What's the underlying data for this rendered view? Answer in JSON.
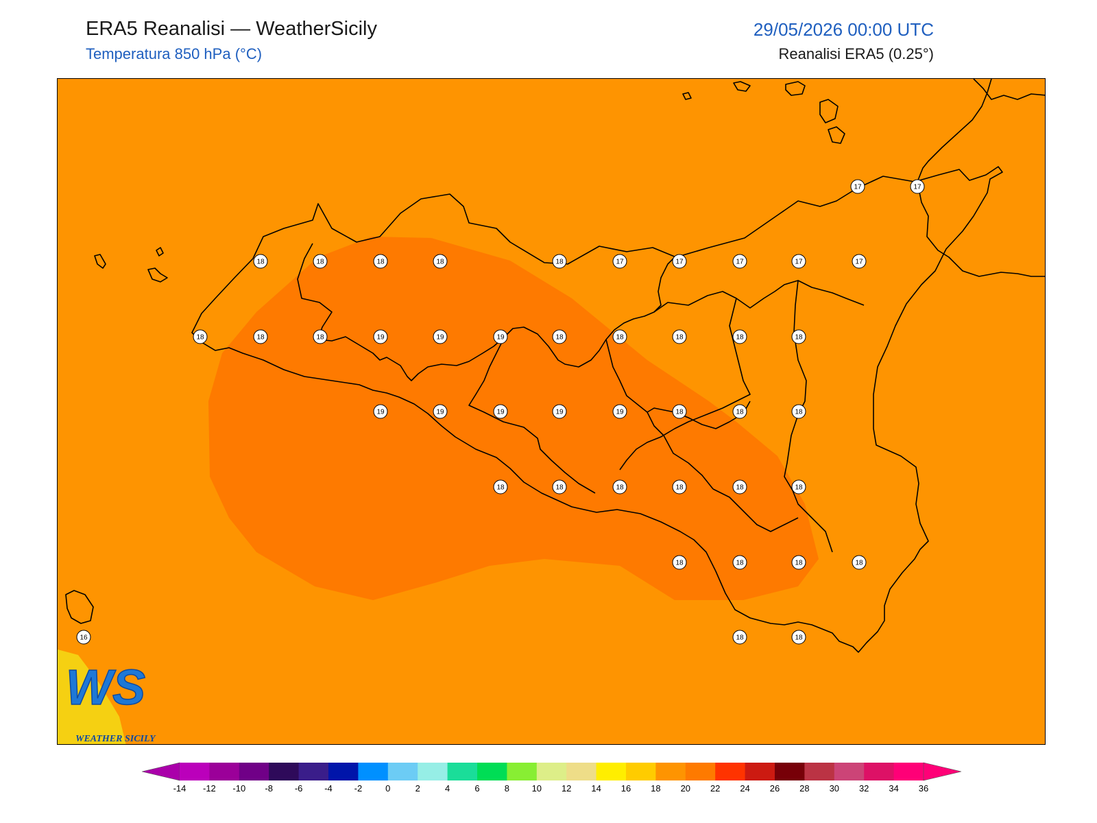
{
  "header": {
    "title": "ERA5 Reanalisi — WeatherSicily",
    "subtitle": "Temperatura 850 hPa (°C)",
    "datetime": "29/05/2026 00:00 UTC",
    "source": "Reanalisi ERA5 (0.25°)"
  },
  "logo": {
    "letters": "WS",
    "text": "WEATHER SICILY"
  },
  "field": {
    "background_color": "#fe9401",
    "warm_zone_color": "#fe7a00",
    "warm_zone_range": "18–20"
  },
  "stations": [
    {
      "v": "17"
    },
    {
      "v": "17"
    },
    {
      "v": "18"
    },
    {
      "v": "18"
    },
    {
      "v": "18"
    },
    {
      "v": "18"
    },
    {
      "v": "18"
    },
    {
      "v": "17"
    },
    {
      "v": "17"
    },
    {
      "v": "17"
    },
    {
      "v": "17"
    },
    {
      "v": "17"
    },
    {
      "v": "18"
    },
    {
      "v": "18"
    },
    {
      "v": "18"
    },
    {
      "v": "19"
    },
    {
      "v": "19"
    },
    {
      "v": "19"
    },
    {
      "v": "18"
    },
    {
      "v": "18"
    },
    {
      "v": "18"
    },
    {
      "v": "18"
    },
    {
      "v": "18"
    },
    {
      "v": "19"
    },
    {
      "v": "19"
    },
    {
      "v": "19"
    },
    {
      "v": "19"
    },
    {
      "v": "19"
    },
    {
      "v": "18"
    },
    {
      "v": "18"
    },
    {
      "v": "18"
    },
    {
      "v": "18"
    },
    {
      "v": "18"
    },
    {
      "v": "18"
    },
    {
      "v": "18"
    },
    {
      "v": "18"
    },
    {
      "v": "18"
    },
    {
      "v": "18"
    },
    {
      "v": "18"
    },
    {
      "v": "18"
    },
    {
      "v": "18"
    },
    {
      "v": "16"
    },
    {
      "v": "18"
    },
    {
      "v": "18"
    }
  ],
  "colorbar": {
    "ticks": [
      "-14",
      "-12",
      "-10",
      "-8",
      "-6",
      "-4",
      "-2",
      "0",
      "2",
      "4",
      "6",
      "8",
      "10",
      "12",
      "14",
      "16",
      "18",
      "20",
      "22",
      "24",
      "26",
      "28",
      "30",
      "32",
      "34",
      "36"
    ],
    "colors": [
      "#bb00bb",
      "#9b0099",
      "#700087",
      "#2e0a5a",
      "#3a1d8a",
      "#0015aa",
      "#0090ff",
      "#6cccf5",
      "#96eee6",
      "#1add99",
      "#00dd55",
      "#88ee33",
      "#ddee88",
      "#eedd88",
      "#ffee00",
      "#ffcc00",
      "#fe9401",
      "#fe7a00",
      "#ff3300",
      "#cc1a11",
      "#770008",
      "#bb3344",
      "#cc4477",
      "#dd1166",
      "#ff0077"
    ],
    "under_color": "#aa00aa",
    "over_color": "#ff0077"
  }
}
